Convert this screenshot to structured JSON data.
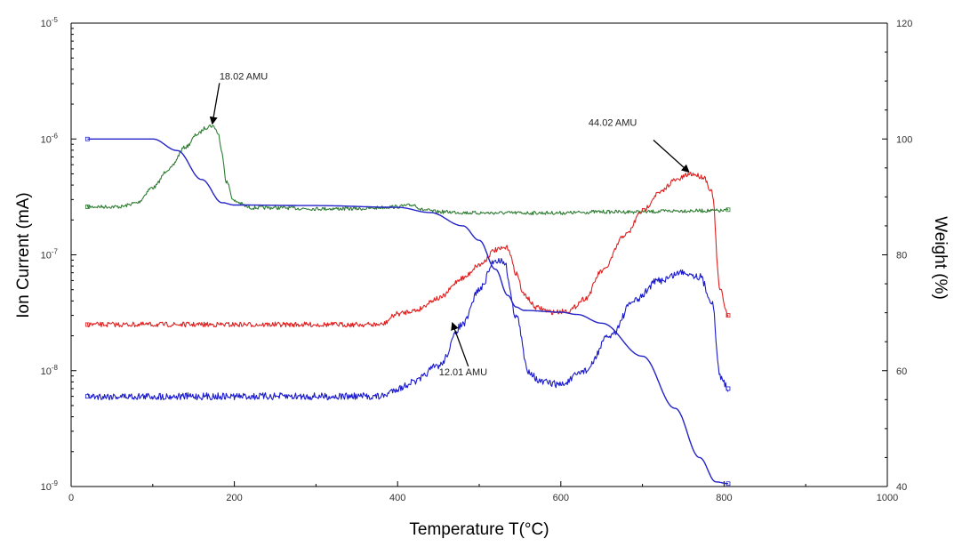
{
  "chart_data": {
    "type": "line",
    "xlabel": "Temperature T(°C)",
    "ylabel_left": "Ion Current (mA)",
    "ylabel_right": "Weight (%)",
    "x_ticks": [
      "0",
      "200",
      "400",
      "600",
      "800",
      "1000"
    ],
    "xlim": [
      0,
      1000
    ],
    "y_left_scale": "log",
    "y_left_ticks": [
      {
        "base": "10",
        "exp": "-5"
      },
      {
        "base": "10",
        "exp": "-6"
      },
      {
        "base": "10",
        "exp": "-7"
      },
      {
        "base": "10",
        "exp": "-8"
      },
      {
        "base": "10",
        "exp": "-9"
      }
    ],
    "y_left_lim": [
      1e-09,
      1e-05
    ],
    "y_right_ticks": [
      "120",
      "100",
      "80",
      "60",
      "40"
    ],
    "y_right_lim": [
      40,
      120
    ],
    "grid": false,
    "series": [
      {
        "name": "18.02 AMU",
        "axis": "left",
        "color": "#2e7d32",
        "x": [
          20,
          60,
          80,
          100,
          120,
          140,
          155,
          165,
          170,
          175,
          180,
          185,
          190,
          200,
          220,
          250,
          300,
          350,
          400,
          410,
          420,
          430,
          450,
          500,
          550,
          600,
          650,
          700,
          750,
          800,
          805
        ],
        "y": [
          2.6e-07,
          2.6e-07,
          2.8e-07,
          3.8e-07,
          5.5e-07,
          8.5e-07,
          1.1e-06,
          1.25e-06,
          1.3e-06,
          1.28e-06,
          1.12e-06,
          7.5e-07,
          4.3e-07,
          2.9e-07,
          2.55e-07,
          2.55e-07,
          2.5e-07,
          2.5e-07,
          2.6e-07,
          2.65e-07,
          2.7e-07,
          2.45e-07,
          2.35e-07,
          2.3e-07,
          2.3e-07,
          2.3e-07,
          2.35e-07,
          2.35e-07,
          2.4e-07,
          2.4e-07,
          2.45e-07
        ],
        "noise": 0.025
      },
      {
        "name": "44.02 AMU",
        "axis": "left",
        "color": "#e02020",
        "x": [
          20,
          100,
          200,
          300,
          380,
          400,
          420,
          450,
          480,
          500,
          520,
          535,
          545,
          555,
          570,
          590,
          610,
          630,
          650,
          680,
          700,
          720,
          740,
          760,
          775,
          785,
          795,
          805
        ],
        "y": [
          2.5e-08,
          2.5e-08,
          2.5e-08,
          2.5e-08,
          2.5e-08,
          3.1e-08,
          3.3e-08,
          4.2e-08,
          6.3e-08,
          8.2e-08,
          1.1e-07,
          1.15e-07,
          7e-08,
          4.5e-08,
          3.5e-08,
          3.2e-08,
          3.3e-08,
          4.2e-08,
          7.2e-08,
          1.5e-07,
          2.4e-07,
          3.4e-07,
          4.4e-07,
          5e-07,
          4.7e-07,
          3.5e-07,
          5e-08,
          3e-08
        ],
        "noise": 0.035
      },
      {
        "name": "12.01 AMU",
        "axis": "left",
        "color": "#1a1acc",
        "x": [
          20,
          100,
          200,
          300,
          380,
          400,
          420,
          450,
          480,
          500,
          520,
          530,
          545,
          560,
          575,
          600,
          630,
          660,
          690,
          720,
          750,
          770,
          785,
          795,
          805
        ],
        "y": [
          6e-09,
          6e-09,
          6e-09,
          6e-09,
          6e-09,
          7e-09,
          8e-09,
          1.1e-08,
          2.5e-08,
          5e-08,
          9e-08,
          8.8e-08,
          3e-08,
          1e-08,
          8e-09,
          7.6e-09,
          1e-08,
          2e-08,
          4e-08,
          6e-08,
          7.1e-08,
          6.5e-08,
          4e-08,
          9e-09,
          7e-09
        ],
        "noise": 0.05
      },
      {
        "name": "Weight",
        "axis": "right",
        "color": "#2424c8",
        "x": [
          20,
          100,
          130,
          160,
          185,
          200,
          300,
          400,
          440,
          480,
          500,
          520,
          535,
          545,
          555,
          600,
          620,
          650,
          700,
          740,
          770,
          790,
          805
        ],
        "y": [
          100,
          100,
          98,
          93,
          89,
          88.6,
          88.5,
          88.2,
          87.3,
          85,
          82.5,
          77.5,
          73,
          71,
          70.4,
          70.1,
          69.7,
          68.2,
          62.5,
          53.5,
          45,
          40.8,
          40.5
        ],
        "noise": 0
      }
    ],
    "annotations": [
      {
        "text": "18.02 AMU",
        "x": 173,
        "y": 1.3e-06
      },
      {
        "text": "44.02 AMU",
        "x": 757,
        "y": 5e-07
      },
      {
        "text": "12.01 AMU",
        "x": 467,
        "y": 2.5e-08
      }
    ]
  }
}
